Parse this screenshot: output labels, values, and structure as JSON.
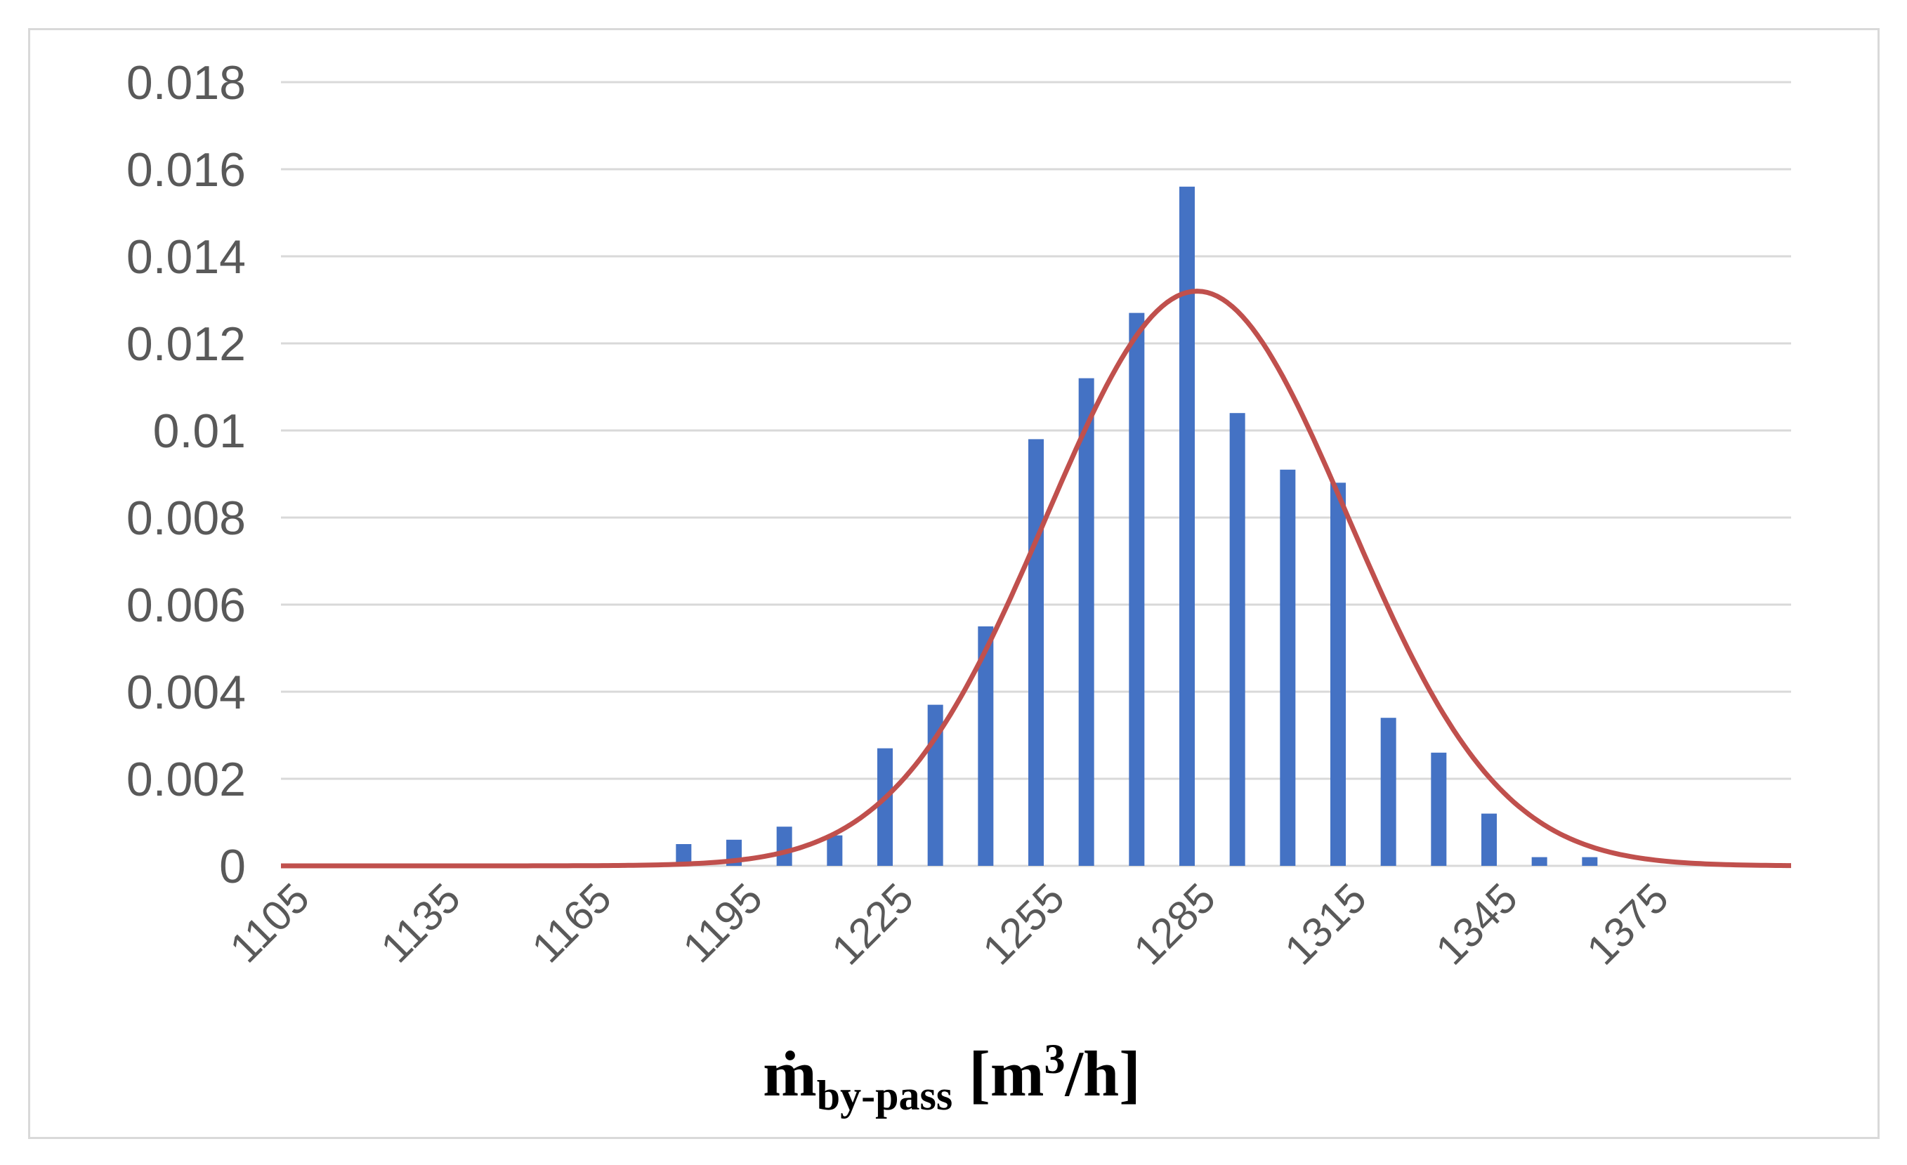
{
  "chart_data": {
    "type": "bar",
    "title": "",
    "ylabel": "",
    "xlabel": {
      "base": "ṁ",
      "subscript": "by-pass",
      "open": " [m",
      "superscript": "3",
      "close": "/h]"
    },
    "ylim": [
      0,
      0.018
    ],
    "yticks": [
      "0",
      "0.002",
      "0.004",
      "0.006",
      "0.008",
      "0.01",
      "0.012",
      "0.014",
      "0.016",
      "0.018"
    ],
    "ytick_values": [
      0,
      0.002,
      0.004,
      0.006,
      0.008,
      0.01,
      0.012,
      0.014,
      0.016,
      0.018
    ],
    "xlim": [
      1100,
      1400
    ],
    "xticks": [
      "1105",
      "1135",
      "1165",
      "1195",
      "1225",
      "1255",
      "1285",
      "1315",
      "1345",
      "1375"
    ],
    "xtick_values": [
      1105,
      1135,
      1165,
      1195,
      1225,
      1255,
      1285,
      1315,
      1345,
      1375
    ],
    "grid": true,
    "series": [
      {
        "name": "histogram",
        "kind": "bar",
        "color": "#4472c4",
        "x": [
          1180,
          1190,
          1200,
          1210,
          1220,
          1230,
          1240,
          1250,
          1260,
          1270,
          1280,
          1290,
          1300,
          1310,
          1320,
          1330,
          1340,
          1350,
          1360
        ],
        "values": [
          0.0005,
          0.0006,
          0.0009,
          0.0007,
          0.0027,
          0.0037,
          0.0055,
          0.0098,
          0.0112,
          0.0127,
          0.0156,
          0.0104,
          0.0091,
          0.0088,
          0.0034,
          0.0026,
          0.0012,
          0.0002,
          0.0002
        ]
      },
      {
        "name": "normal-fit",
        "kind": "line",
        "color": "#c0504d",
        "mean": 1282,
        "std": 30,
        "peak": 0.0132,
        "x": [
          1100,
          1110,
          1120,
          1130,
          1140,
          1150,
          1160,
          1170,
          1180,
          1190,
          1200,
          1210,
          1220,
          1230,
          1240,
          1250,
          1260,
          1270,
          1280,
          1282,
          1290,
          1300,
          1310,
          1320,
          1330,
          1340,
          1350,
          1360,
          1370,
          1380,
          1390,
          1400
        ],
        "values": [
          0.0,
          0.0,
          0.0,
          0.0,
          0.0,
          0.0,
          0.0,
          1e-05,
          1e-05,
          0.00012,
          0.00032,
          0.00074,
          0.00154,
          0.00292,
          0.00494,
          0.00747,
          0.01009,
          0.0122,
          0.01318,
          0.0132,
          0.01274,
          0.011,
          0.0085,
          0.00587,
          0.00363,
          0.002,
          0.00099,
          0.00043,
          0.00017,
          6e-05,
          2e-05,
          0.0
        ]
      }
    ]
  }
}
